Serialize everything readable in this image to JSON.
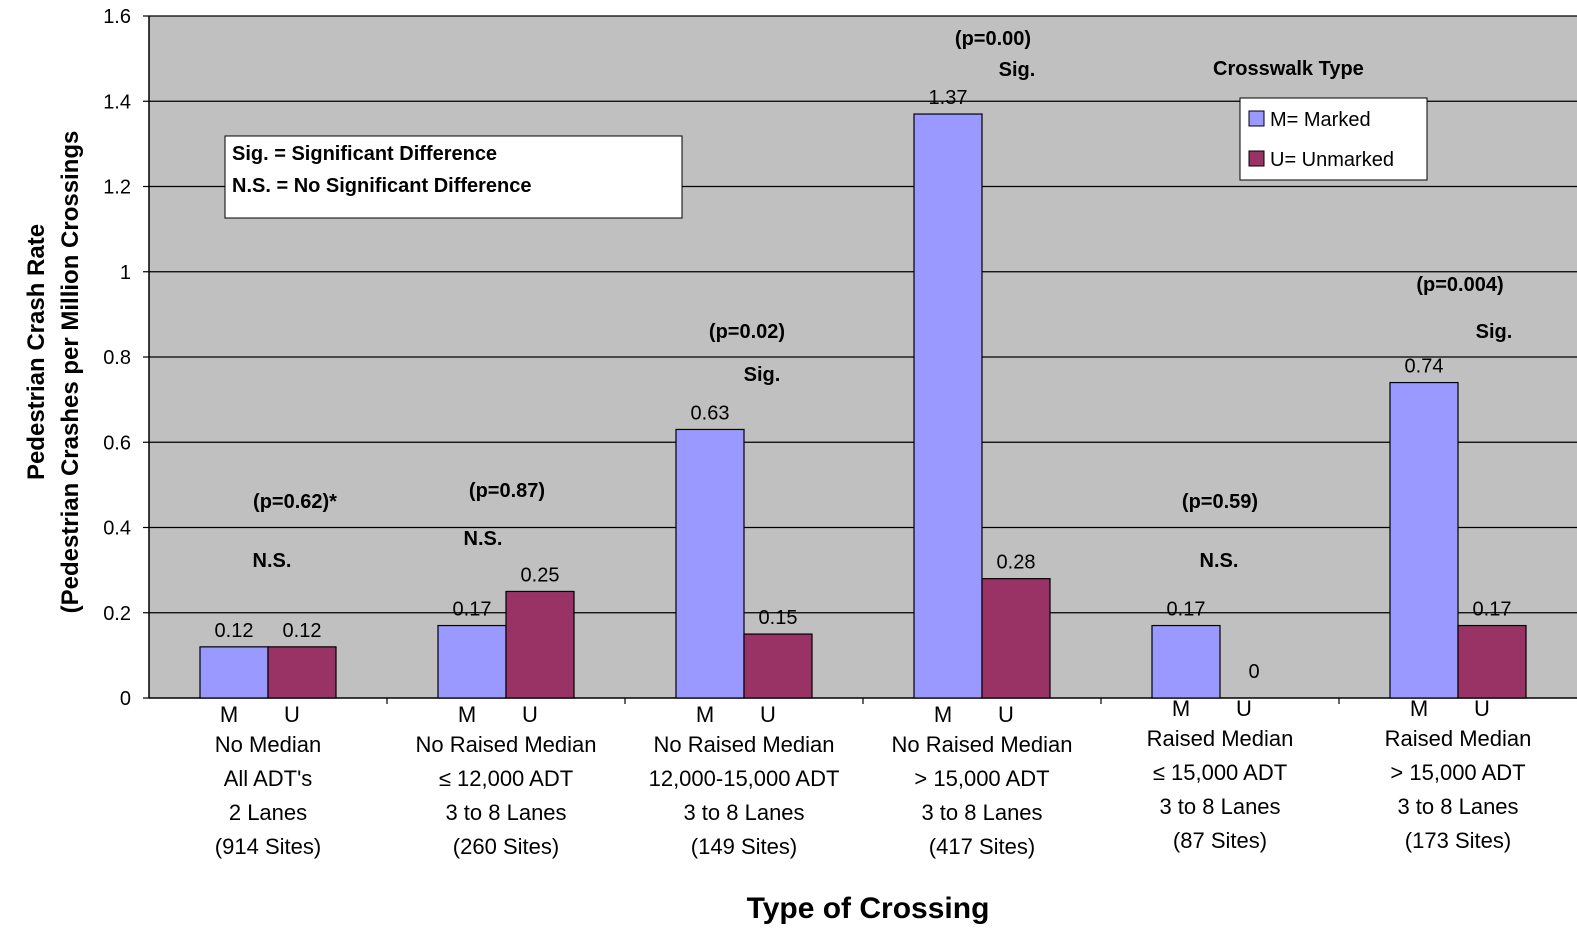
{
  "chart_data": {
    "type": "bar",
    "categories": [
      [
        "No Median",
        "All ADT's",
        "2 Lanes",
        "(914 Sites)"
      ],
      [
        "No Raised Median",
        "≤ 12,000 ADT",
        "3 to 8 Lanes",
        "(260 Sites)"
      ],
      [
        "No Raised Median",
        "12,000-15,000 ADT",
        "3 to 8 Lanes",
        "(149 Sites)"
      ],
      [
        "No Raised Median",
        "> 15,000 ADT",
        "3 to 8 Lanes",
        "(417 Sites)"
      ],
      [
        "Raised Median",
        "≤ 15,000 ADT",
        "3 to 8 Lanes",
        "(87 Sites)"
      ],
      [
        "Raised Median",
        "> 15,000 ADT",
        "3 to 8 Lanes",
        "(173 Sites)"
      ]
    ],
    "subcategory_labels": [
      "M",
      "U"
    ],
    "series": [
      {
        "name": "M= Marked",
        "color": "#9999ff",
        "values": [
          0.12,
          0.17,
          0.63,
          1.37,
          0.17,
          0.74
        ]
      },
      {
        "name": "U= Unmarked",
        "color": "#993366",
        "values": [
          0.12,
          0.25,
          0.15,
          0.28,
          0,
          0.17
        ]
      }
    ],
    "data_labels": [
      [
        "0.12",
        "0.17",
        "0.63",
        "1.37",
        "0.17",
        "0.74"
      ],
      [
        "0.12",
        "0.25",
        "0.15",
        "0.28",
        "0",
        "0.17"
      ]
    ],
    "significance": [
      {
        "p": "(p=0.62)*",
        "result": "N.S."
      },
      {
        "p": "(p=0.87)",
        "result": "N.S."
      },
      {
        "p": "(p=0.02)",
        "result": "Sig."
      },
      {
        "p": "(p=0.00)",
        "result": "Sig."
      },
      {
        "p": "(p=0.59)",
        "result": "N.S."
      },
      {
        "p": "(p=0.004)",
        "result": "Sig."
      }
    ],
    "ylabel_line1": "Pedestrian Crash Rate",
    "ylabel_line2": "(Pedestrian Crashes per Million Crossings",
    "xlabel": "Type of Crossing",
    "ylim": [
      0,
      1.6
    ],
    "yticks": [
      "0",
      "0.2",
      "0.4",
      "0.6",
      "0.8",
      "1",
      "1.2",
      "1.4",
      "1.6"
    ],
    "grid": true,
    "plot_background": "#c0c0c0",
    "legend": {
      "title": "Crosswalk Type",
      "placement": "top-right"
    },
    "note_box": [
      "Sig. = Significant Difference",
      "N.S. = No Significant Difference"
    ]
  }
}
